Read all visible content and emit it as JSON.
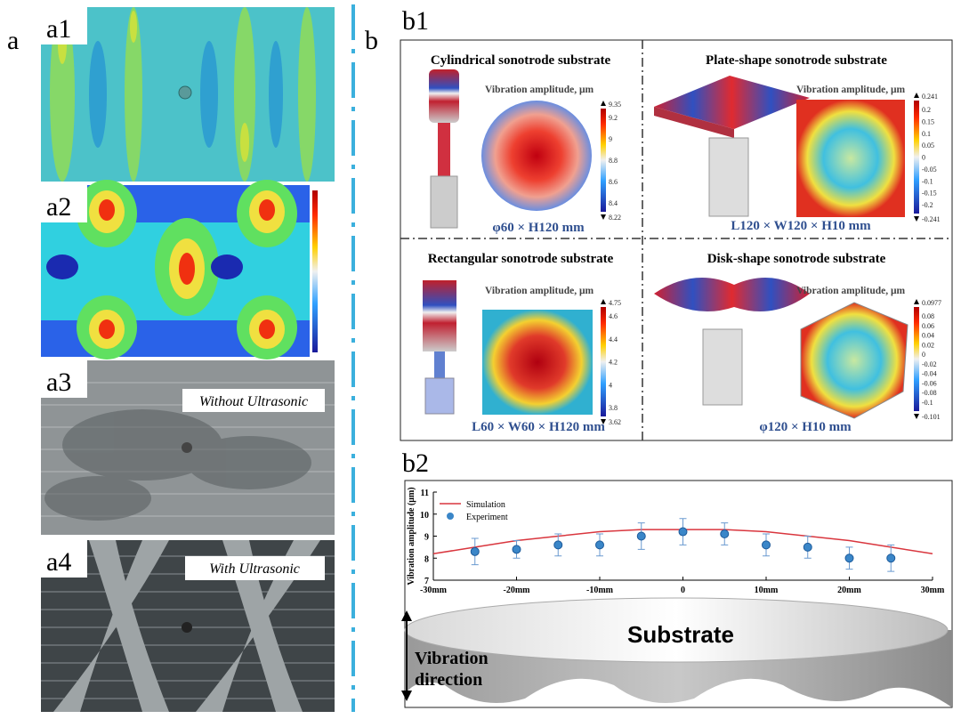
{
  "labels": {
    "a": "a",
    "a1": "a1",
    "a2": "a2",
    "a3": "a3",
    "a4": "a4",
    "b": "b",
    "b1": "b1",
    "b2": "b2"
  },
  "photos": {
    "a3": "Without Ultrasonic",
    "a4": "With Ultrasonic"
  },
  "b1": [
    {
      "title": "Cylindrical sonotrode substrate",
      "legend": "Vibration amplitude, μm",
      "size": "φ60 × H120 mm",
      "max": 9.35,
      "ticks": [
        9.2,
        9,
        8.8,
        8.6,
        8.4
      ],
      "min": 8.22
    },
    {
      "title": "Plate-shape sonotrode substrate",
      "legend": "Vibration amplitude, μm",
      "size": "L120 × W120 × H10 mm",
      "max": 0.241,
      "ticks": [
        0.2,
        0.15,
        0.1,
        0.05,
        0,
        -0.05,
        -0.1,
        -0.15,
        -0.2
      ],
      "min": -0.241
    },
    {
      "title": "Rectangular sonotrode substrate",
      "legend": "Vibration amplitude, μm",
      "size": "L60 × W60 × H120 mm",
      "max": 4.75,
      "ticks": [
        4.6,
        4.4,
        4.2,
        4,
        3.8
      ],
      "min": 3.62
    },
    {
      "title": "Disk-shape sonotrode substrate",
      "legend": "Vibration amplitude, μm",
      "size": "φ120 × H10 mm",
      "max": 0.0977,
      "ticks": [
        0.08,
        0.06,
        0.04,
        0.02,
        0,
        -0.02,
        -0.04,
        -0.06,
        -0.08,
        -0.1
      ],
      "min": -0.101
    }
  ],
  "substrate": {
    "label": "Substrate",
    "direction": [
      "Vibration",
      "direction"
    ]
  },
  "chart_data": {
    "type": "line",
    "ylabel": "Vibration amplitude (μm)",
    "xlim": [
      -30,
      30
    ],
    "ylim": [
      7,
      11
    ],
    "xticks": [
      {
        "value": -30,
        "label": "-30mm"
      },
      {
        "value": -20,
        "label": "-20mm"
      },
      {
        "value": -10,
        "label": "-10mm"
      },
      0,
      {
        "value": 10,
        "label": "10mm"
      },
      {
        "value": 20,
        "label": "20mm"
      },
      {
        "value": 30,
        "label": "30mm"
      }
    ],
    "yticks": [
      7,
      8,
      9,
      10,
      11
    ],
    "series": [
      {
        "name": "Simulation",
        "color": "#d9363e",
        "x": [
          -30,
          -25,
          -20,
          -15,
          -10,
          -5,
          0,
          5,
          10,
          15,
          20,
          25,
          30
        ],
        "values": [
          8.2,
          8.5,
          8.8,
          9.0,
          9.2,
          9.3,
          9.3,
          9.3,
          9.2,
          9.0,
          8.8,
          8.5,
          8.2
        ]
      },
      {
        "name": "Experiment",
        "color": "#3a86c8",
        "x": [
          -25,
          -20,
          -15,
          -10,
          -5,
          0,
          5,
          10,
          15,
          20,
          25
        ],
        "values": [
          8.3,
          8.4,
          8.6,
          8.6,
          9.0,
          9.2,
          9.1,
          8.6,
          8.5,
          8.0,
          8.0
        ],
        "errors": [
          0.6,
          0.4,
          0.5,
          0.5,
          0.6,
          0.6,
          0.5,
          0.5,
          0.5,
          0.5,
          0.6
        ]
      }
    ]
  }
}
